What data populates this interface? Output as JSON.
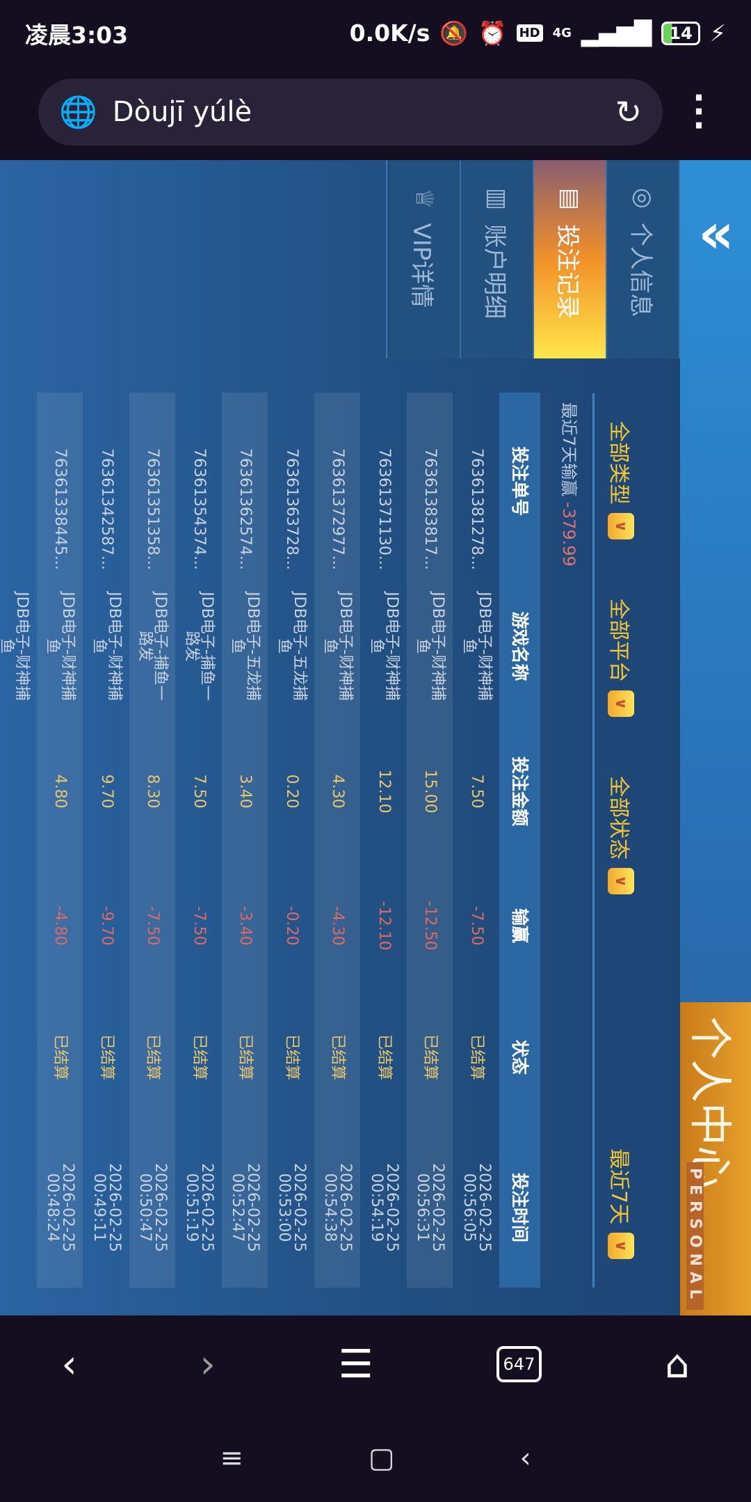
{
  "status_bar": {
    "time": "凌晨3:03",
    "speed": "0.0K/s",
    "hd": "HD",
    "network": "4G",
    "battery": "14"
  },
  "browser": {
    "title": "Dòujī yúlè",
    "tab_count": "647"
  },
  "banner": {
    "title": "个人中心",
    "subtitle": "PERSONAL"
  },
  "tabs": [
    {
      "label": "个人信息",
      "icon": "user-icon"
    },
    {
      "label": "投注记录",
      "icon": "bet-record-icon",
      "active": true
    },
    {
      "label": "账户明细",
      "icon": "ledger-icon"
    },
    {
      "label": "VIP详情",
      "icon": "crown-icon"
    }
  ],
  "filters": {
    "type": "全部类型",
    "platform": "全部平台",
    "status": "全部状态",
    "range": "最近7天"
  },
  "summary": {
    "label": "最近7天输赢",
    "value": "-379.99"
  },
  "table": {
    "headers": [
      "投注单号",
      "游戏名称",
      "投注金额",
      "输赢",
      "状态",
      "投注时间"
    ],
    "rows": [
      [
        "76361381278...",
        "JDB电子-财神捕鱼",
        "7.50",
        "-7.50",
        "已结算",
        "2026-02-25 00:56:05"
      ],
      [
        "76361383817...",
        "JDB电子-财神捕鱼",
        "15.00",
        "-12.50",
        "已结算",
        "2026-02-25 00:56:31"
      ],
      [
        "76361371130...",
        "JDB电子-财神捕鱼",
        "12.10",
        "-12.10",
        "已结算",
        "2026-02-25 00:54:19"
      ],
      [
        "76361372977...",
        "JDB电子-财神捕鱼",
        "4.30",
        "-4.30",
        "已结算",
        "2026-02-25 00:54:38"
      ],
      [
        "76361363728...",
        "JDB电子-五龙捕鱼",
        "0.20",
        "-0.20",
        "已结算",
        "2026-02-25 00:53:00"
      ],
      [
        "76361362574...",
        "JDB电子-五龙捕鱼",
        "3.40",
        "-3.40",
        "已结算",
        "2026-02-25 00:52:47"
      ],
      [
        "76361354374...",
        "JDB电子-捕鱼一路发",
        "7.50",
        "-7.50",
        "已结算",
        "2026-02-25 00:51:19"
      ],
      [
        "76361351358...",
        "JDB电子-捕鱼一路发",
        "8.30",
        "-7.50",
        "已结算",
        "2026-02-25 00:50:47"
      ],
      [
        "76361342587...",
        "JDB电子-财神捕鱼",
        "9.70",
        "-9.70",
        "已结算",
        "2026-02-25 00:49:11"
      ],
      [
        "76361338445...",
        "JDB电子-财神捕鱼",
        "4.80",
        "-4.80",
        "已结算",
        "2026-02-25 00:48:24"
      ],
      [
        "",
        "JDB电子-财神捕鱼",
        "",
        "",
        "",
        ""
      ]
    ]
  },
  "colors": {
    "accent": "#f5c631",
    "loss": "#df6a63",
    "amount": "#e9c56c",
    "header": "#2b67a3"
  }
}
